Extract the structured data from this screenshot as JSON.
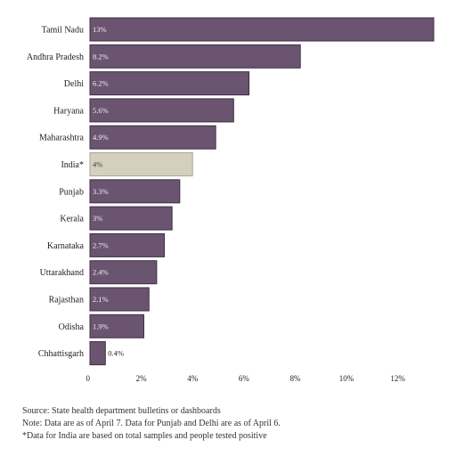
{
  "chart_data": {
    "type": "bar",
    "orientation": "horizontal",
    "categories": [
      "Tamil Nadu",
      "Andhra Pradesh",
      "Delhi",
      "Haryana",
      "Maharashtra",
      "India*",
      "Punjab",
      "Kerala",
      "Karnataka",
      "Uttarakhand",
      "Rajasthan",
      "Odisha",
      "Chhattisgarh"
    ],
    "values": [
      13,
      8.2,
      6.2,
      5.6,
      4.9,
      4,
      3.3,
      3,
      2.7,
      2.4,
      2.1,
      1.9,
      0.4
    ],
    "bar_display": [
      13.4,
      8.2,
      6.2,
      5.6,
      4.9,
      4,
      3.5,
      3.2,
      2.9,
      2.6,
      2.3,
      2.1,
      0.6
    ],
    "value_labels": [
      "13%",
      "8.2%",
      "6.2%",
      "5.6%",
      "4.9%",
      "4%",
      "3.3%",
      "3%",
      "2.7%",
      "2.4%",
      "2.1%",
      "1.9%",
      "0.4%"
    ],
    "highlight_category": "India*",
    "xlim": [
      0,
      13.4
    ],
    "xticks": [
      0,
      2,
      4,
      6,
      8,
      10,
      12
    ],
    "xtick_labels": [
      "0",
      "2%",
      "4%",
      "6%",
      "8%",
      "10%",
      "12%"
    ],
    "grid": false,
    "title": "",
    "xlabel": "",
    "ylabel": "",
    "colors": {
      "bar": "#6b5470",
      "bar_border": "#3f2f45",
      "highlight": "#d3d0bd",
      "highlight_border": "#a9a692",
      "label_on_bar": "#f2eef2",
      "label_on_highlight": "#3a3a3a",
      "label_outside": "#222222"
    }
  },
  "notes": {
    "source": "Source: State health department bulletins or dashboards",
    "note": "Note: Data are as of April 7. Data for Punjab and Delhi are as of April 6.",
    "footnote": "*Data for India are based on total samples and people tested positive"
  }
}
